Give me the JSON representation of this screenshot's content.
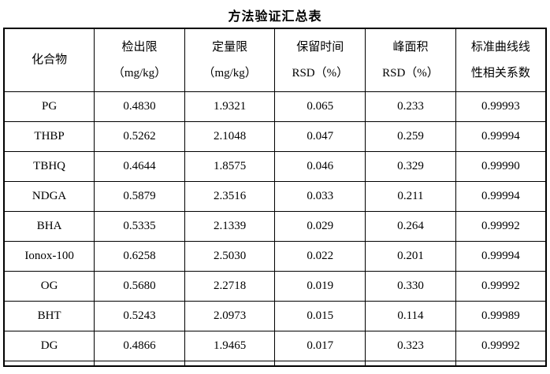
{
  "title": "方法验证汇总表",
  "colors": {
    "text": "#000000",
    "background": "#ffffff",
    "border": "#000000"
  },
  "table": {
    "columns": [
      {
        "line1": "化合物",
        "line2": ""
      },
      {
        "line1": "检出限",
        "line2": "（mg/kg）"
      },
      {
        "line1": "定量限",
        "line2": "（mg/kg）"
      },
      {
        "line1": "保留时间",
        "line2": "RSD（%）"
      },
      {
        "line1": "峰面积",
        "line2": "RSD（%）"
      },
      {
        "line1": "标准曲线线",
        "line2": "性相关系数"
      }
    ],
    "rows": [
      [
        "PG",
        "0.4830",
        "1.9321",
        "0.065",
        "0.233",
        "0.99993"
      ],
      [
        "THBP",
        "0.5262",
        "2.1048",
        "0.047",
        "0.259",
        "0.99994"
      ],
      [
        "TBHQ",
        "0.4644",
        "1.8575",
        "0.046",
        "0.329",
        "0.99990"
      ],
      [
        "NDGA",
        "0.5879",
        "2.3516",
        "0.033",
        "0.211",
        "0.99994"
      ],
      [
        "BHA",
        "0.5335",
        "2.1339",
        "0.029",
        "0.264",
        "0.99992"
      ],
      [
        "Ionox-100",
        "0.6258",
        "2.5030",
        "0.022",
        "0.201",
        "0.99994"
      ],
      [
        "OG",
        "0.5680",
        "2.2718",
        "0.019",
        "0.330",
        "0.99992"
      ],
      [
        "BHT",
        "0.5243",
        "2.0973",
        "0.015",
        "0.114",
        "0.99989"
      ],
      [
        "DG",
        "0.4866",
        "1.9465",
        "0.017",
        "0.323",
        "0.99992"
      ]
    ]
  }
}
